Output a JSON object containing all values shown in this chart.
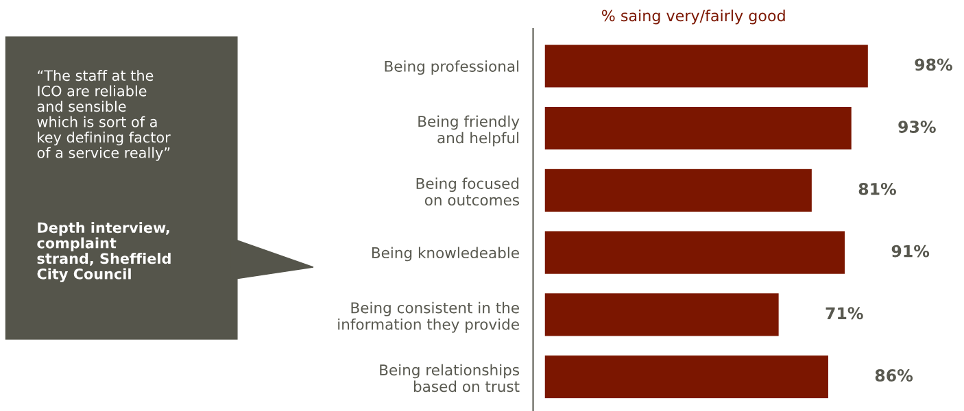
{
  "chart_data": {
    "type": "bar",
    "orientation": "horizontal",
    "title": "% saing very/fairly good",
    "categories": [
      "Being professional",
      "Being friendly\nand helpful",
      "Being focused\non outcomes",
      "Being knowledeable",
      "Being consistent in the\ninformation they provide",
      "Being relationships\nbased on trust"
    ],
    "values": [
      98,
      93,
      81,
      91,
      71,
      86
    ],
    "color": "#7b1600",
    "data_labels": true,
    "value_labels": [
      "98%",
      "93%",
      "81%",
      "91%",
      "71%",
      "86%"
    ],
    "annotations": [
      "“The staff at the\nICO are reliable\nand sensible\nwhich is sort of a\nkey defining factor\nof a service really”",
      "Depth interview,\ncomplaint\nstrand, Sheffield\nCity Council"
    ]
  }
}
